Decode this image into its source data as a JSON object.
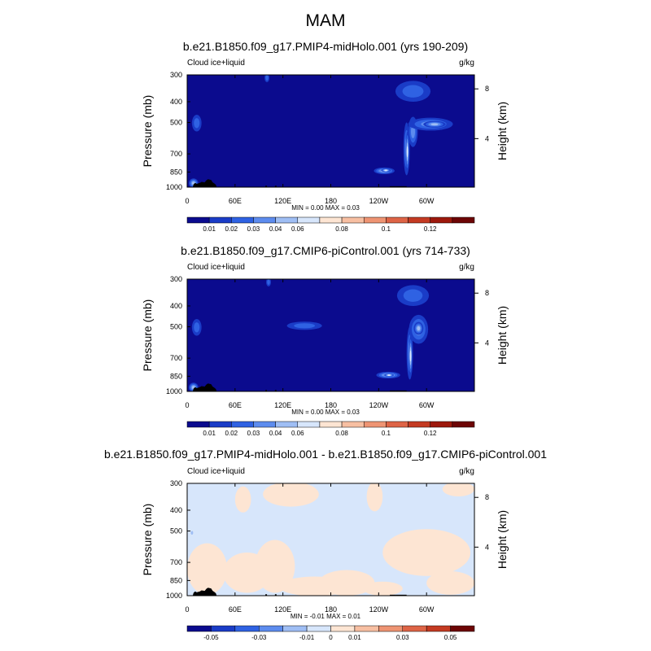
{
  "figure": {
    "title": "MAM"
  },
  "chart_data": [
    {
      "type": "heatmap",
      "title": "b.e21.B1850.f09_g17.PMIP4-midHolo.001 (yrs 190-209)",
      "left_string": "Cloud ice+liquid",
      "right_string": "g/kg",
      "ylabel": "Pressure (mb)",
      "y2label": "Height (km)",
      "x_ticks": [
        "0",
        "60E",
        "120E",
        "180",
        "120W",
        "60W"
      ],
      "y_ticks": [
        "300",
        "400",
        "500",
        "700",
        "850",
        "1000"
      ],
      "y2_ticks": [
        "8",
        "4"
      ],
      "stats": "MIN =   0.00  MAX =   0.03",
      "colorbar_labels": [
        "0.01",
        "0.02",
        "0.03",
        "0.04",
        "0.06",
        "0.08",
        "0.1",
        "0.12"
      ],
      "colorbar_colors": [
        "#0b0b8e",
        "#1a3cc7",
        "#2f62e3",
        "#5d8cee",
        "#9fbef4",
        "#d7e6fb",
        "#fde5d3",
        "#f7bfa2",
        "#ee9473",
        "#de6446",
        "#c43a22",
        "#9d180c",
        "#6d0505"
      ],
      "background_color": "#0b0b8e",
      "blobs": [
        {
          "lon": 247,
          "p": 840,
          "rlon": 13,
          "rp": 30,
          "level": 4
        },
        {
          "lon": 249,
          "p": 835,
          "rlon": 6,
          "rp": 15,
          "level": 5
        },
        {
          "lon": 275,
          "p": 690,
          "rlon": 4,
          "rp": 190,
          "level": 3
        },
        {
          "lon": 276,
          "p": 700,
          "rlon": 2,
          "rp": 150,
          "level": 5
        },
        {
          "lon": 283,
          "p": 560,
          "rlon": 6,
          "rp": 90,
          "level": 3
        },
        {
          "lon": 305,
          "p": 510,
          "rlon": 28,
          "rp": 35,
          "level": 3
        },
        {
          "lon": 310,
          "p": 510,
          "rlon": 14,
          "rp": 18,
          "level": 4
        },
        {
          "lon": 12,
          "p": 505,
          "rlon": 6,
          "rp": 45,
          "level": 2
        },
        {
          "lon": 283,
          "p": 360,
          "rlon": 22,
          "rp": 40,
          "level": 2
        },
        {
          "lon": 8,
          "p": 960,
          "rlon": 6,
          "rp": 50,
          "level": 4
        },
        {
          "lon": 100,
          "p": 310,
          "rlon": 3,
          "rp": 15,
          "level": 2
        }
      ]
    },
    {
      "type": "heatmap",
      "title": "b.e21.B1850.f09_g17.CMIP6-piControl.001 (yrs 714-733)",
      "left_string": "Cloud ice+liquid",
      "right_string": "g/kg",
      "ylabel": "Pressure (mb)",
      "y2label": "Height (km)",
      "x_ticks": [
        "0",
        "60E",
        "120E",
        "180",
        "120W",
        "60W"
      ],
      "y_ticks": [
        "300",
        "400",
        "500",
        "700",
        "850",
        "1000"
      ],
      "y2_ticks": [
        "8",
        "4"
      ],
      "stats": "MIN =   0.00  MAX =   0.03",
      "colorbar_labels": [
        "0.01",
        "0.02",
        "0.03",
        "0.04",
        "0.06",
        "0.08",
        "0.1",
        "0.12"
      ],
      "colorbar_colors": [
        "#0b0b8e",
        "#1a3cc7",
        "#2f62e3",
        "#5d8cee",
        "#9fbef4",
        "#d7e6fb",
        "#fde5d3",
        "#f7bfa2",
        "#ee9473",
        "#de6446",
        "#c43a22",
        "#9d180c",
        "#6d0505"
      ],
      "background_color": "#0b0b8e",
      "blobs": [
        {
          "lon": 252,
          "p": 840,
          "rlon": 15,
          "rp": 30,
          "level": 4
        },
        {
          "lon": 253,
          "p": 840,
          "rlon": 6,
          "rp": 14,
          "level": 5
        },
        {
          "lon": 279,
          "p": 690,
          "rlon": 4,
          "rp": 190,
          "level": 3
        },
        {
          "lon": 280,
          "p": 700,
          "rlon": 2,
          "rp": 150,
          "level": 5
        },
        {
          "lon": 290,
          "p": 520,
          "rlon": 12,
          "rp": 80,
          "level": 3
        },
        {
          "lon": 290,
          "p": 510,
          "rlon": 6,
          "rp": 35,
          "level": 4
        },
        {
          "lon": 147,
          "p": 495,
          "rlon": 22,
          "rp": 22,
          "level": 2
        },
        {
          "lon": 12,
          "p": 505,
          "rlon": 6,
          "rp": 45,
          "level": 2
        },
        {
          "lon": 283,
          "p": 360,
          "rlon": 20,
          "rp": 40,
          "level": 2
        },
        {
          "lon": 8,
          "p": 960,
          "rlon": 6,
          "rp": 50,
          "level": 4
        },
        {
          "lon": 102,
          "p": 310,
          "rlon": 3,
          "rp": 15,
          "level": 2
        }
      ]
    },
    {
      "type": "heatmap",
      "title": "b.e21.B1850.f09_g17.PMIP4-midHolo.001 - b.e21.B1850.f09_g17.CMIP6-piControl.001",
      "left_string": "Cloud ice+liquid",
      "right_string": "g/kg",
      "ylabel": "Pressure (mb)",
      "y2label": "Height (km)",
      "x_ticks": [
        "0",
        "60E",
        "120E",
        "180",
        "120W",
        "60W"
      ],
      "y_ticks": [
        "300",
        "400",
        "500",
        "700",
        "850",
        "1000"
      ],
      "y2_ticks": [
        "8",
        "4"
      ],
      "stats": "MIN =  -0.01  MAX =   0.01",
      "colorbar_labels": [
        "-0.05",
        "-0.03",
        "-0.01",
        "0",
        "0.01",
        "0.03",
        "0.05"
      ],
      "colorbar_colors": [
        "#0b0b8e",
        "#1a3cc7",
        "#2f62e3",
        "#5d8cee",
        "#9fbef4",
        "#d7e6fb",
        "#fde5d3",
        "#f7bfa2",
        "#ee9473",
        "#de6446",
        "#c43a22",
        "#6d0505"
      ],
      "background_color": "#d7e6fb",
      "warm_color": "#fde5d3",
      "blobs": [
        {
          "lon": 25,
          "p": 780,
          "rlon": 25,
          "rp": 210,
          "level": 6
        },
        {
          "lon": 75,
          "p": 800,
          "rlon": 30,
          "rp": 170,
          "level": 6
        },
        {
          "lon": 110,
          "p": 760,
          "rlon": 25,
          "rp": 210,
          "level": 6
        },
        {
          "lon": 160,
          "p": 910,
          "rlon": 45,
          "rp": 95,
          "level": 6
        },
        {
          "lon": 200,
          "p": 880,
          "rlon": 35,
          "rp": 120,
          "level": 6
        },
        {
          "lon": 245,
          "p": 930,
          "rlon": 25,
          "rp": 70,
          "level": 6
        },
        {
          "lon": 300,
          "p": 650,
          "rlon": 55,
          "rp": 160,
          "level": 6
        },
        {
          "lon": 330,
          "p": 880,
          "rlon": 30,
          "rp": 110,
          "level": 6
        },
        {
          "lon": 130,
          "p": 340,
          "rlon": 35,
          "rp": 45,
          "level": 6
        },
        {
          "lon": 70,
          "p": 360,
          "rlon": 10,
          "rp": 50,
          "level": 6
        },
        {
          "lon": 235,
          "p": 350,
          "rlon": 10,
          "rp": 55,
          "level": 6
        },
        {
          "lon": 340,
          "p": 320,
          "rlon": 20,
          "rp": 25,
          "level": 6
        },
        {
          "lon": 6,
          "p": 510,
          "rlon": 1.5,
          "rp": 10,
          "level": 4
        }
      ]
    }
  ]
}
